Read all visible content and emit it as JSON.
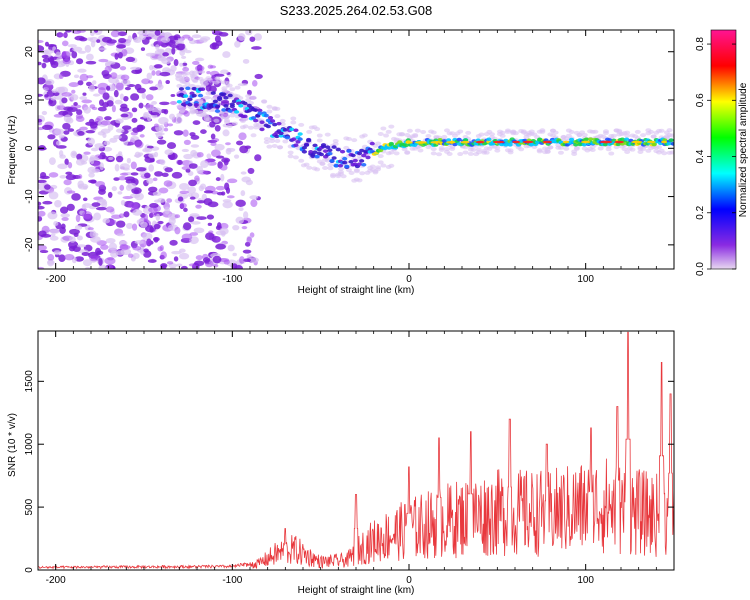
{
  "title": "S233.2025.264.02.53.G08",
  "chart_data": [
    {
      "type": "heatmap",
      "xlabel": "Height of straight line (km)",
      "ylabel": "Frequency (Hz)",
      "xlim": [
        -210,
        150
      ],
      "ylim": [
        -25,
        24.5
      ],
      "xticks": [
        -200,
        -100,
        0,
        100
      ],
      "yticks": [
        -20,
        -10,
        0,
        10,
        20
      ],
      "xtick_labels": [
        "-200",
        "-100",
        "0",
        "100"
      ],
      "ytick_labels": [
        "-20",
        "-10",
        "0",
        "10",
        "20"
      ],
      "ridge": [
        {
          "x": -125,
          "y": 11
        },
        {
          "x": -100,
          "y": 9
        },
        {
          "x": -80,
          "y": 5
        },
        {
          "x": -60,
          "y": 1
        },
        {
          "x": -45,
          "y": -1.5
        },
        {
          "x": -30,
          "y": -2.5
        },
        {
          "x": -15,
          "y": 0
        },
        {
          "x": 0,
          "y": 1.2
        },
        {
          "x": 50,
          "y": 1.3
        },
        {
          "x": 100,
          "y": 1.3
        },
        {
          "x": 150,
          "y": 1.3
        }
      ],
      "colorbar": {
        "label": "Normalized spectral amplitude",
        "range": [
          0,
          0.85
        ],
        "ticks": [
          0.0,
          0.2,
          0.4,
          0.6,
          0.8
        ],
        "tick_labels": [
          "0.0",
          "0.2",
          "0.4",
          "0.6",
          "0.8"
        ],
        "colors": [
          "#e8d8f0",
          "#8a2be2",
          "#0000ff",
          "#00ffff",
          "#00ff00",
          "#ffff00",
          "#ff0000",
          "#ff1493"
        ]
      }
    },
    {
      "type": "line",
      "xlabel": "Height of straight line (km)",
      "ylabel": "SNR (10 * v/v)",
      "xlim": [
        -210,
        150
      ],
      "ylim": [
        0,
        1900
      ],
      "xticks": [
        -200,
        -100,
        0,
        100
      ],
      "yticks": [
        0,
        500,
        1000,
        1500
      ],
      "xtick_labels": [
        "-200",
        "-100",
        "0",
        "100"
      ],
      "ytick_labels": [
        "0",
        "500",
        "1000",
        "1500"
      ],
      "color": "#e8383d",
      "envelope": [
        {
          "x": -210,
          "y": 30
        },
        {
          "x": -100,
          "y": 40
        },
        {
          "x": -85,
          "y": 80
        },
        {
          "x": -75,
          "y": 200
        },
        {
          "x": -65,
          "y": 250
        },
        {
          "x": -50,
          "y": 100
        },
        {
          "x": -35,
          "y": 120
        },
        {
          "x": -25,
          "y": 300
        },
        {
          "x": -15,
          "y": 400
        },
        {
          "x": 0,
          "y": 500
        },
        {
          "x": 20,
          "y": 600
        },
        {
          "x": 50,
          "y": 700
        },
        {
          "x": 80,
          "y": 700
        },
        {
          "x": 110,
          "y": 800
        },
        {
          "x": 130,
          "y": 700
        },
        {
          "x": 150,
          "y": 650
        }
      ],
      "peaks": [
        {
          "x": -70,
          "y": 330
        },
        {
          "x": -30,
          "y": 600
        },
        {
          "x": 0,
          "y": 820
        },
        {
          "x": 17,
          "y": 1050
        },
        {
          "x": 35,
          "y": 1100
        },
        {
          "x": 57,
          "y": 1200
        },
        {
          "x": 78,
          "y": 1000
        },
        {
          "x": 103,
          "y": 1130
        },
        {
          "x": 118,
          "y": 1300
        },
        {
          "x": 124,
          "y": 1890
        },
        {
          "x": 143,
          "y": 1650
        },
        {
          "x": 148,
          "y": 1400
        }
      ]
    }
  ]
}
